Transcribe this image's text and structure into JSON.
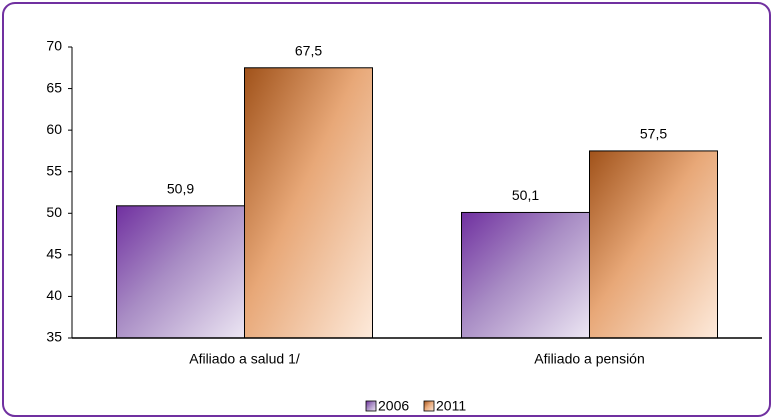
{
  "chart_data": {
    "type": "bar",
    "categories": [
      "Afiliado a salud 1/",
      "Afiliado a pensión"
    ],
    "series": [
      {
        "name": "2006",
        "color": "#7030a0",
        "values": [
          50.9,
          50.1
        ],
        "value_labels": [
          "50,9",
          "50,1"
        ]
      },
      {
        "name": "2011",
        "color": "#a0521a",
        "values": [
          67.5,
          57.5
        ],
        "value_labels": [
          "67,5",
          "57,5"
        ]
      }
    ],
    "ylim": [
      35,
      70
    ],
    "yticks": [
      35,
      40,
      45,
      50,
      55,
      60,
      65,
      70
    ],
    "legend": "bottom"
  }
}
